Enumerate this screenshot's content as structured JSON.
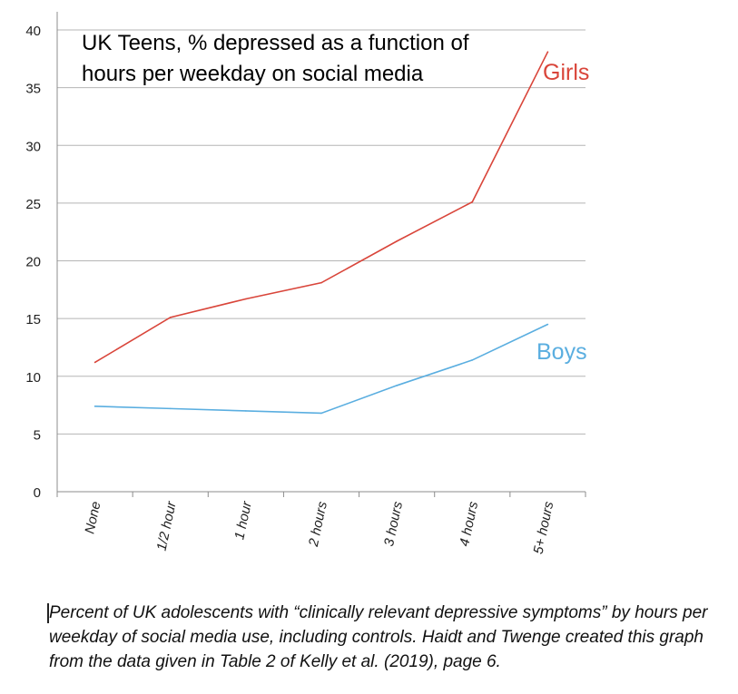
{
  "chart_data": {
    "type": "line",
    "title": "UK Teens, % depressed as a function of hours per weekday on social media",
    "title_lines": [
      "UK Teens, % depressed as a function of",
      "hours per weekday on social media"
    ],
    "categories": [
      "None",
      "1/2 hour",
      "1 hour",
      "2 hours",
      "3 hours",
      "4 hours",
      "5+ hours"
    ],
    "y_ticks": [
      "0",
      "5",
      "10",
      "15",
      "20",
      "25",
      "30",
      "35",
      "40"
    ],
    "ylim": [
      0,
      40
    ],
    "grid": true,
    "xlabel": "",
    "ylabel": "",
    "series": [
      {
        "name": "Girls",
        "color": "#d9453a",
        "values": [
          11.2,
          15.1,
          16.7,
          18.1,
          21.7,
          25.1,
          38.1
        ]
      },
      {
        "name": "Boys",
        "color": "#5aaee0",
        "values": [
          7.4,
          7.2,
          7.0,
          6.8,
          9.2,
          11.4,
          14.5
        ]
      }
    ]
  },
  "caption": "Percent of UK adolescents with “clinically relevant depressive symptoms” by hours per weekday of social media use, including controls. Haidt and Twenge created this graph from the data given in Table 2 of Kelly et al. (2019), page 6."
}
